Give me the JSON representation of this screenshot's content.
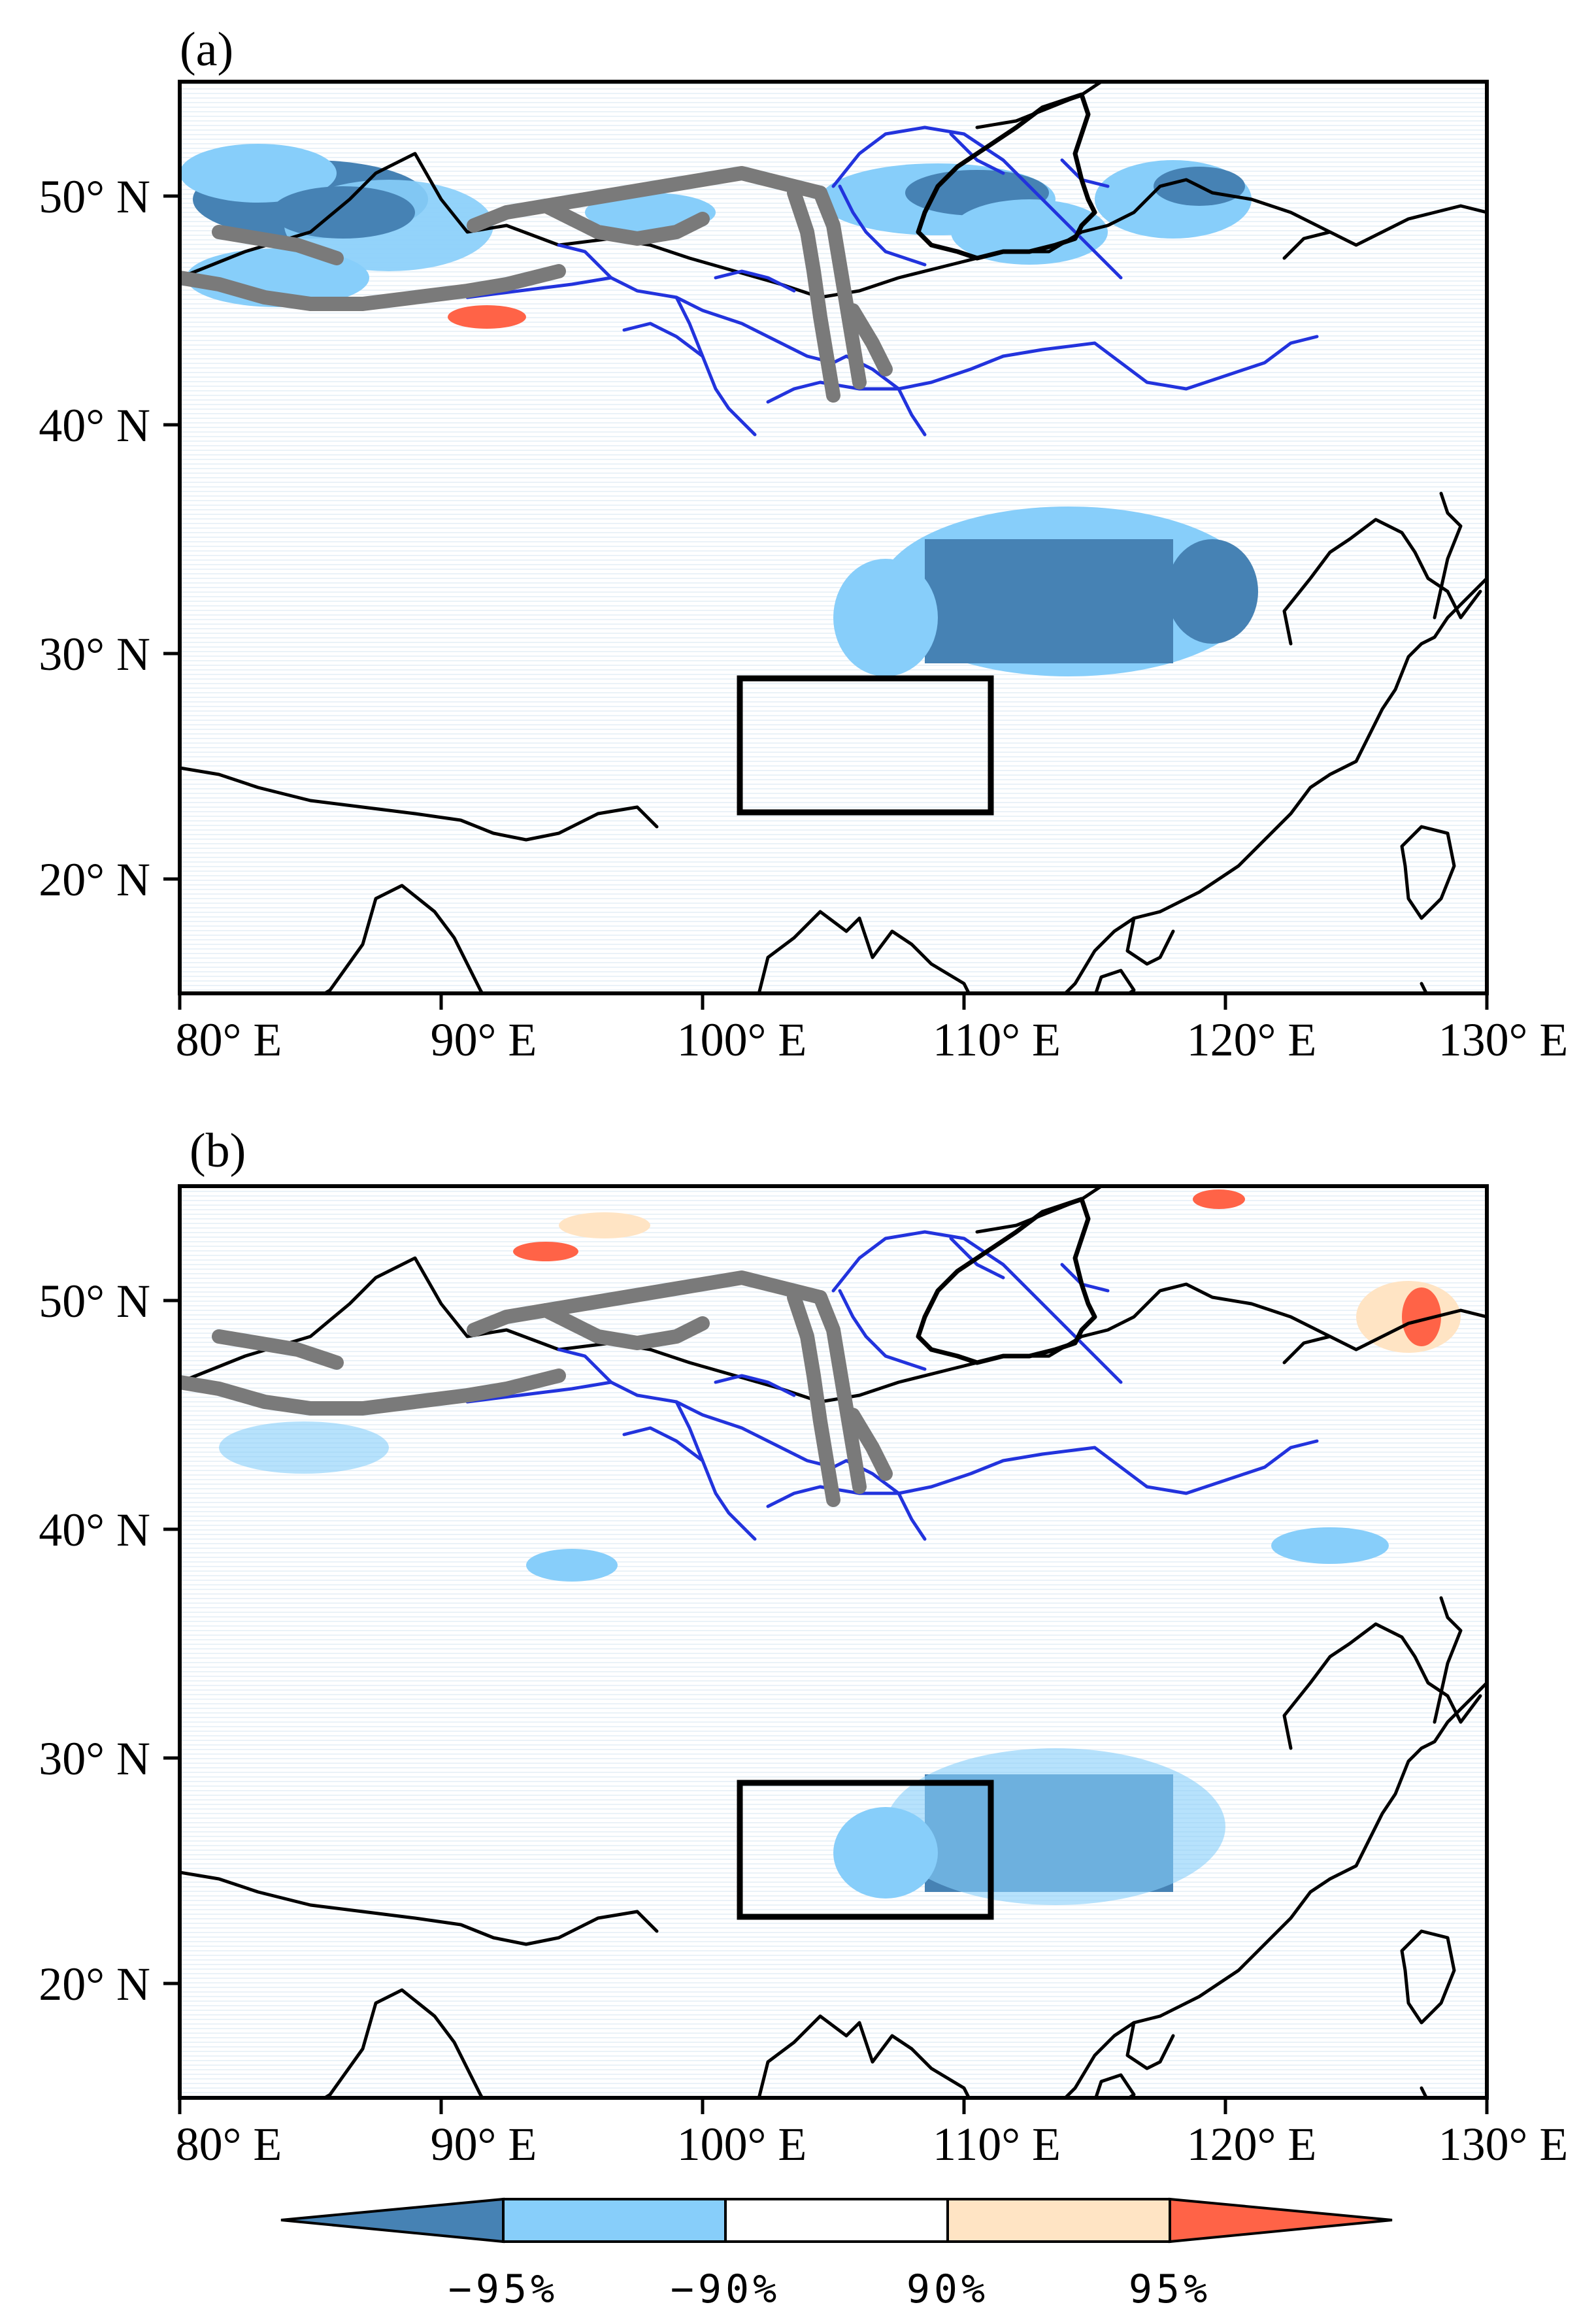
{
  "panels": [
    {
      "label": "(a)",
      "x_ticks": [
        "80° E",
        "90° E",
        "100° E",
        "110° E",
        "120° E",
        "130° E"
      ],
      "y_ticks": [
        "20° N",
        "30° N",
        "40° N",
        "50° N"
      ]
    },
    {
      "label": "(b)",
      "x_ticks": [
        "80° E",
        "90° E",
        "100° E",
        "110° E",
        "120° E",
        "130° E"
      ],
      "y_ticks": [
        "20° N",
        "30° N",
        "40° N",
        "50° N"
      ]
    }
  ],
  "map_extent": {
    "lon": [
      80,
      130
    ],
    "lat": [
      15,
      55
    ]
  },
  "region_box": {
    "lon": [
      101.5,
      111
    ],
    "lat": [
      23,
      29
    ]
  },
  "colorbar": {
    "labels": [
      "−95%",
      "−90%",
      "90%",
      "95%"
    ],
    "colors": [
      "#4682b4",
      "#87cefa",
      "#ffffff",
      "#ffe4c4",
      "#ff6347"
    ]
  },
  "colors": {
    "neg95": "#4682b4",
    "neg90": "#87cefa",
    "pos90": "#ffe4c4",
    "pos95": "#ff6347",
    "rivers": "#2233dd",
    "mountains": "#7a7a7a",
    "coast": "#000000"
  }
}
